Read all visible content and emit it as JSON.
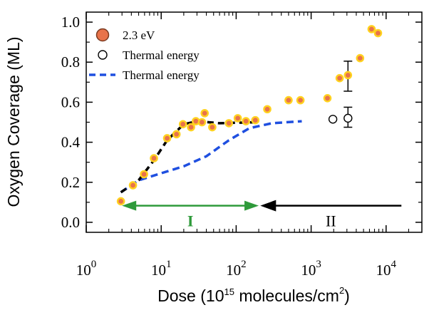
{
  "chart_data": {
    "type": "scatter",
    "xscale": "log",
    "xlim": [
      1,
      30000
    ],
    "ylim": [
      -0.05,
      1.05
    ],
    "ylabel": "Oxygen Coverage (ML)",
    "xlabel_prefix": "Dose (10",
    "xlabel_sup": "15",
    "xlabel_mid": " molecules/cm",
    "xlabel_sup2": "2",
    "xlabel_suffix": ")",
    "x_ticks": [
      {
        "value": 1,
        "base": "10",
        "exp": "0"
      },
      {
        "value": 10,
        "base": "10",
        "exp": "1"
      },
      {
        "value": 100,
        "base": "10",
        "exp": "2"
      },
      {
        "value": 1000,
        "base": "10",
        "exp": "3"
      },
      {
        "value": 10000,
        "base": "10",
        "exp": "4"
      }
    ],
    "y_ticks": [
      {
        "value": 0.0,
        "label": "0.0"
      },
      {
        "value": 0.2,
        "label": "0.2"
      },
      {
        "value": 0.4,
        "label": "0.4"
      },
      {
        "value": 0.6,
        "label": "0.6"
      },
      {
        "value": 0.8,
        "label": "0.8"
      },
      {
        "value": 1.0,
        "label": "1.0"
      }
    ],
    "legend_position": "top-left",
    "series": [
      {
        "name": "2.3 eV",
        "kind": "filled-marker",
        "fill": "#e8734a",
        "edge": "#ffd21f",
        "points": [
          [
            2.9,
            0.105
          ],
          [
            4.2,
            0.185
          ],
          [
            5.9,
            0.24
          ],
          [
            8.0,
            0.32
          ],
          [
            12.0,
            0.42
          ],
          [
            16.0,
            0.44
          ],
          [
            19.5,
            0.49
          ],
          [
            25.0,
            0.475
          ],
          [
            29.0,
            0.505
          ],
          [
            35.0,
            0.5
          ],
          [
            38.0,
            0.545
          ],
          [
            48.0,
            0.475
          ],
          [
            80.0,
            0.495
          ],
          [
            105.0,
            0.52
          ],
          [
            135.0,
            0.505
          ],
          [
            180.0,
            0.51
          ],
          [
            260.0,
            0.565
          ],
          [
            500.0,
            0.61
          ],
          [
            720.0,
            0.61
          ],
          [
            1650.0,
            0.62
          ],
          [
            2400.0,
            0.72
          ],
          [
            3100.0,
            0.735
          ],
          [
            4500.0,
            0.82
          ],
          [
            6400.0,
            0.965
          ],
          [
            7800.0,
            0.945
          ]
        ]
      },
      {
        "name": "Thermal energy",
        "kind": "open-marker",
        "points": [
          [
            1950.0,
            0.515
          ],
          [
            3100.0,
            0.52
          ]
        ]
      },
      {
        "name": "Thermal energy",
        "kind": "dashed-line",
        "color": "#1f4fe0",
        "points": [
          [
            2.9,
            0.15
          ],
          [
            5.0,
            0.21
          ],
          [
            10.0,
            0.245
          ],
          [
            20.0,
            0.28
          ],
          [
            40.0,
            0.33
          ],
          [
            80.0,
            0.41
          ],
          [
            150.0,
            0.47
          ],
          [
            300.0,
            0.495
          ],
          [
            750.0,
            0.505
          ]
        ]
      },
      {
        "kind": "black-dashed-fit",
        "color": "#000000",
        "points": [
          [
            2.9,
            0.15
          ],
          [
            5.0,
            0.21
          ],
          [
            8.0,
            0.31
          ],
          [
            12.0,
            0.41
          ],
          [
            20.0,
            0.49
          ],
          [
            30.0,
            0.505
          ],
          [
            60.0,
            0.495
          ],
          [
            180.0,
            0.5
          ]
        ]
      }
    ],
    "error_bars": [
      {
        "x": 3100.0,
        "y": 0.735,
        "low": 0.655,
        "high": 0.805
      },
      {
        "x": 3100.0,
        "y": 0.52,
        "low": 0.475,
        "high": 0.575
      }
    ],
    "annotations": [
      {
        "id": "region-I",
        "label": "I",
        "x_from": 3.0,
        "x_to": 200.0,
        "y": 0.083,
        "color": "#2e9a3a",
        "heads": "both"
      },
      {
        "id": "region-II",
        "label": "II",
        "x_from": 210.0,
        "x_to": 16000.0,
        "y": 0.083,
        "color": "#000000",
        "heads": "start"
      }
    ]
  }
}
